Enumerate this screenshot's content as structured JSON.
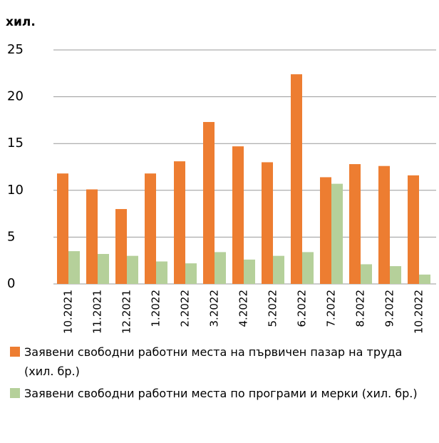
{
  "chart_data": {
    "type": "bar",
    "ylabel": "хил.",
    "categories": [
      "10.2021",
      "11.2021",
      "12.2021",
      "1.2022",
      "2.2022",
      "3.2022",
      "4.2022",
      "5.2022",
      "6.2022",
      "7.2022",
      "8.2022",
      "9.2022",
      "10.2022"
    ],
    "series": [
      {
        "name": "Заявени свободни работни места на първичен пазар на труда  (хил. бр.)",
        "color": "#ed7d31",
        "values": [
          11.8,
          10.1,
          8.0,
          11.8,
          13.1,
          17.3,
          14.7,
          13.0,
          22.4,
          11.4,
          12.8,
          12.6,
          11.6
        ]
      },
      {
        "name": "Заявени свободни работни места по програми и мерки (хил. бр.)",
        "color": "#b5d09a",
        "values": [
          3.5,
          3.2,
          3.0,
          2.4,
          2.2,
          3.4,
          2.6,
          3.0,
          3.4,
          10.7,
          2.1,
          1.9,
          1.0
        ]
      }
    ],
    "ylim": [
      0,
      25
    ],
    "yticks": [
      0,
      5,
      10,
      15,
      20,
      25
    ],
    "grid": true,
    "legend": "bottom"
  }
}
